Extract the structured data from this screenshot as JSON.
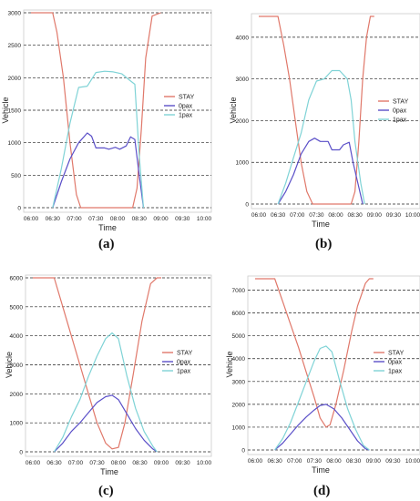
{
  "colors": {
    "stay": "#E0786A",
    "zero_pax": "#5A4FC8",
    "one_pax": "#7FD3D6",
    "grid": "#222222",
    "frame": "#cccccc",
    "text": "#222222"
  },
  "chart_data": [
    {
      "id": "a",
      "type": "line",
      "caption": "(a)",
      "xlabel": "Time",
      "ylabel": "Vehicle",
      "x": [
        "06:00",
        "06:30",
        "07:00",
        "07:30",
        "08:00",
        "08:30",
        "09:00",
        "09:30",
        "10:00"
      ],
      "yticks": [
        "0",
        "500",
        "1000",
        "1500",
        "2000",
        "2500",
        "3000"
      ],
      "ylim": [
        0,
        3000
      ],
      "grid": "horizontal-dashed",
      "legend": "center-right",
      "series": [
        {
          "name": "STAY",
          "color_key": "stay",
          "points": [
            [
              0,
              3000
            ],
            [
              0.5,
              3000
            ],
            [
              0.6,
              2700
            ],
            [
              0.75,
              2000
            ],
            [
              0.9,
              1000
            ],
            [
              1.05,
              200
            ],
            [
              1.15,
              0
            ],
            [
              2.35,
              0
            ],
            [
              2.45,
              300
            ],
            [
              2.55,
              1200
            ],
            [
              2.65,
              2300
            ],
            [
              2.8,
              2950
            ],
            [
              3.0,
              3000
            ]
          ]
        },
        {
          "name": "0pax",
          "color_key": "zero_pax",
          "points": [
            [
              0.5,
              0
            ],
            [
              0.7,
              400
            ],
            [
              0.9,
              750
            ],
            [
              1.1,
              1000
            ],
            [
              1.3,
              1150
            ],
            [
              1.4,
              1100
            ],
            [
              1.5,
              920
            ],
            [
              1.7,
              920
            ],
            [
              1.8,
              900
            ],
            [
              1.95,
              930
            ],
            [
              2.05,
              900
            ],
            [
              2.2,
              950
            ],
            [
              2.3,
              1090
            ],
            [
              2.4,
              1050
            ],
            [
              2.5,
              500
            ],
            [
              2.6,
              0
            ]
          ]
        },
        {
          "name": "1pax",
          "color_key": "one_pax",
          "points": [
            [
              0.5,
              0
            ],
            [
              0.7,
              600
            ],
            [
              0.9,
              1300
            ],
            [
              1.1,
              1850
            ],
            [
              1.3,
              1870
            ],
            [
              1.5,
              2080
            ],
            [
              1.7,
              2100
            ],
            [
              1.9,
              2090
            ],
            [
              2.1,
              2060
            ],
            [
              2.3,
              1950
            ],
            [
              2.4,
              1900
            ],
            [
              2.5,
              800
            ],
            [
              2.6,
              0
            ]
          ]
        }
      ]
    },
    {
      "id": "b",
      "type": "line",
      "caption": "(b)",
      "xlabel": "Time",
      "ylabel": "Vehicle",
      "x": [
        "06:00",
        "06:30",
        "07:00",
        "07:30",
        "08:00",
        "08:30",
        "09:00",
        "09:30",
        "10:00"
      ],
      "yticks": [
        "0",
        "1000",
        "2000",
        "3000",
        "4000"
      ],
      "ylim": [
        0,
        4500
      ],
      "grid": "horizontal-dashed",
      "legend": "center-right",
      "series": [
        {
          "name": "STAY",
          "color_key": "stay",
          "points": [
            [
              0,
              4500
            ],
            [
              0.5,
              4500
            ],
            [
              0.65,
              3800
            ],
            [
              0.8,
              3000
            ],
            [
              0.95,
              2000
            ],
            [
              1.1,
              1000
            ],
            [
              1.25,
              300
            ],
            [
              1.4,
              0
            ],
            [
              2.4,
              0
            ],
            [
              2.5,
              300
            ],
            [
              2.6,
              1500
            ],
            [
              2.7,
              3000
            ],
            [
              2.8,
              4000
            ],
            [
              2.9,
              4500
            ],
            [
              3.0,
              4500
            ]
          ]
        },
        {
          "name": "0pax",
          "color_key": "zero_pax",
          "points": [
            [
              0.5,
              0
            ],
            [
              0.7,
              300
            ],
            [
              0.9,
              700
            ],
            [
              1.1,
              1200
            ],
            [
              1.3,
              1500
            ],
            [
              1.45,
              1580
            ],
            [
              1.6,
              1500
            ],
            [
              1.8,
              1500
            ],
            [
              1.9,
              1300
            ],
            [
              2.1,
              1300
            ],
            [
              2.2,
              1420
            ],
            [
              2.35,
              1480
            ],
            [
              2.45,
              1000
            ],
            [
              2.6,
              400
            ],
            [
              2.7,
              0
            ]
          ]
        },
        {
          "name": "1pax",
          "color_key": "one_pax",
          "points": [
            [
              0.5,
              0
            ],
            [
              0.7,
              500
            ],
            [
              0.9,
              1100
            ],
            [
              1.1,
              1700
            ],
            [
              1.3,
              2500
            ],
            [
              1.5,
              2950
            ],
            [
              1.7,
              3000
            ],
            [
              1.9,
              3200
            ],
            [
              2.1,
              3200
            ],
            [
              2.3,
              3000
            ],
            [
              2.4,
              2500
            ],
            [
              2.5,
              1500
            ],
            [
              2.65,
              500
            ],
            [
              2.75,
              0
            ]
          ]
        }
      ]
    },
    {
      "id": "c",
      "type": "line",
      "caption": "(c)",
      "xlabel": "Time",
      "ylabel": "Vehicle",
      "x": [
        "06:00",
        "06:30",
        "07:00",
        "07:30",
        "08:00",
        "08:30",
        "09:00",
        "09:30",
        "10:00"
      ],
      "yticks": [
        "0",
        "1000",
        "2000",
        "3000",
        "4000",
        "5000",
        "6000"
      ],
      "ylim": [
        0,
        6000
      ],
      "grid": "horizontal-dashed",
      "legend": "center-right",
      "series": [
        {
          "name": "STAY",
          "color_key": "stay",
          "points": [
            [
              0,
              6000
            ],
            [
              0.5,
              6000
            ],
            [
              0.7,
              5000
            ],
            [
              0.9,
              4000
            ],
            [
              1.1,
              3000
            ],
            [
              1.3,
              2000
            ],
            [
              1.5,
              1000
            ],
            [
              1.7,
              300
            ],
            [
              1.85,
              100
            ],
            [
              2.0,
              150
            ],
            [
              2.15,
              1000
            ],
            [
              2.35,
              2700
            ],
            [
              2.55,
              4500
            ],
            [
              2.75,
              5800
            ],
            [
              2.9,
              6000
            ],
            [
              3.0,
              6000
            ]
          ]
        },
        {
          "name": "0pax",
          "color_key": "zero_pax",
          "points": [
            [
              0.5,
              0
            ],
            [
              0.7,
              300
            ],
            [
              0.9,
              700
            ],
            [
              1.1,
              1000
            ],
            [
              1.3,
              1350
            ],
            [
              1.5,
              1700
            ],
            [
              1.7,
              1900
            ],
            [
              1.85,
              1950
            ],
            [
              2.0,
              1800
            ],
            [
              2.2,
              1300
            ],
            [
              2.4,
              800
            ],
            [
              2.6,
              400
            ],
            [
              2.8,
              100
            ],
            [
              2.9,
              0
            ]
          ]
        },
        {
          "name": "1pax",
          "color_key": "one_pax",
          "points": [
            [
              0.5,
              0
            ],
            [
              0.7,
              500
            ],
            [
              0.9,
              1200
            ],
            [
              1.1,
              1800
            ],
            [
              1.3,
              2600
            ],
            [
              1.5,
              3300
            ],
            [
              1.7,
              3900
            ],
            [
              1.85,
              4100
            ],
            [
              2.0,
              3900
            ],
            [
              2.2,
              2600
            ],
            [
              2.4,
              1500
            ],
            [
              2.6,
              700
            ],
            [
              2.8,
              200
            ],
            [
              2.9,
              0
            ]
          ]
        }
      ]
    },
    {
      "id": "d",
      "type": "line",
      "caption": "(d)",
      "xlabel": "Time",
      "ylabel": "Vehicle",
      "x": [
        "06:00",
        "06:30",
        "07:00",
        "07:30",
        "08:00",
        "08:30",
        "09:00",
        "09:30",
        "10:00"
      ],
      "yticks": [
        "0",
        "1000",
        "2000",
        "3000",
        "4000",
        "5000",
        "6000",
        "7000"
      ],
      "ylim": [
        0,
        7500
      ],
      "grid": "horizontal-dashed",
      "legend": "center-right",
      "series": [
        {
          "name": "STAY",
          "color_key": "stay",
          "points": [
            [
              0,
              7500
            ],
            [
              0.5,
              7500
            ],
            [
              0.7,
              6500
            ],
            [
              0.9,
              5500
            ],
            [
              1.1,
              4500
            ],
            [
              1.3,
              3400
            ],
            [
              1.5,
              2300
            ],
            [
              1.65,
              1400
            ],
            [
              1.8,
              1000
            ],
            [
              1.9,
              1100
            ],
            [
              2.05,
              2000
            ],
            [
              2.25,
              3500
            ],
            [
              2.45,
              5200
            ],
            [
              2.6,
              6300
            ],
            [
              2.8,
              7300
            ],
            [
              2.9,
              7500
            ],
            [
              3.0,
              7500
            ]
          ]
        },
        {
          "name": "0pax",
          "color_key": "zero_pax",
          "points": [
            [
              0.5,
              0
            ],
            [
              0.7,
              300
            ],
            [
              0.9,
              700
            ],
            [
              1.1,
              1100
            ],
            [
              1.3,
              1450
            ],
            [
              1.5,
              1750
            ],
            [
              1.65,
              1950
            ],
            [
              1.8,
              2000
            ],
            [
              2.0,
              1800
            ],
            [
              2.2,
              1400
            ],
            [
              2.4,
              900
            ],
            [
              2.6,
              400
            ],
            [
              2.8,
              50
            ],
            [
              2.9,
              0
            ]
          ]
        },
        {
          "name": "1pax",
          "color_key": "one_pax",
          "points": [
            [
              0.5,
              0
            ],
            [
              0.7,
              500
            ],
            [
              0.9,
              1200
            ],
            [
              1.1,
              2100
            ],
            [
              1.3,
              3000
            ],
            [
              1.5,
              3900
            ],
            [
              1.65,
              4450
            ],
            [
              1.8,
              4550
            ],
            [
              1.95,
              4300
            ],
            [
              2.15,
              3000
            ],
            [
              2.35,
              1800
            ],
            [
              2.55,
              900
            ],
            [
              2.75,
              200
            ],
            [
              2.9,
              0
            ]
          ]
        }
      ]
    }
  ]
}
